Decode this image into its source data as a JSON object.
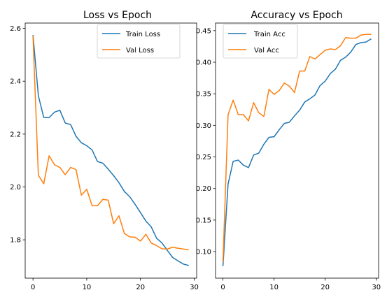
{
  "chart_data": [
    {
      "type": "line",
      "title": "Loss vs Epoch",
      "xlabel": "",
      "ylabel": "",
      "xlim": [
        -1.45,
        30.45
      ],
      "ylim": [
        1.655,
        2.62
      ],
      "xticks": [
        0,
        10,
        20,
        30
      ],
      "yticks": [
        1.8,
        2.0,
        2.2,
        2.4,
        2.6
      ],
      "ytick_labels": [
        "1.8",
        "2.0",
        "2.2",
        "2.4",
        "2.6"
      ],
      "grid": false,
      "legend": "top-right",
      "x": [
        0,
        1,
        2,
        3,
        4,
        5,
        6,
        7,
        8,
        9,
        10,
        11,
        12,
        13,
        14,
        15,
        16,
        17,
        18,
        19,
        20,
        21,
        22,
        23,
        24,
        25,
        26,
        27,
        28,
        29
      ],
      "series": [
        {
          "name": "Train Loss",
          "color": "#1f77b4",
          "values": [
            2.575,
            2.345,
            2.263,
            2.262,
            2.283,
            2.29,
            2.242,
            2.236,
            2.192,
            2.167,
            2.156,
            2.14,
            2.096,
            2.09,
            2.067,
            2.043,
            2.016,
            1.983,
            1.963,
            1.934,
            1.903,
            1.871,
            1.849,
            1.806,
            1.788,
            1.76,
            1.733,
            1.72,
            1.708,
            1.703
          ]
        },
        {
          "name": "Val Loss",
          "color": "#ff7f0e",
          "values": [
            2.571,
            2.044,
            2.012,
            2.118,
            2.084,
            2.074,
            2.046,
            2.074,
            2.066,
            1.969,
            1.991,
            1.929,
            1.929,
            1.953,
            1.95,
            1.861,
            1.891,
            1.824,
            1.811,
            1.81,
            1.795,
            1.821,
            1.788,
            1.778,
            1.766,
            1.765,
            1.772,
            1.768,
            1.765,
            1.762
          ]
        }
      ]
    },
    {
      "type": "line",
      "title": "Accuracy vs Epoch",
      "xlabel": "",
      "ylabel": "",
      "xlim": [
        -1.45,
        30.45
      ],
      "ylim": [
        0.058,
        0.462
      ],
      "xticks": [
        0,
        10,
        20,
        30
      ],
      "yticks": [
        0.1,
        0.15,
        0.2,
        0.25,
        0.3,
        0.35,
        0.4,
        0.45
      ],
      "ytick_labels": [
        "0.10",
        "0.15",
        "0.20",
        "0.25",
        "0.30",
        "0.35",
        "0.40",
        "0.45"
      ],
      "grid": false,
      "legend": "top-left",
      "x": [
        0,
        1,
        2,
        3,
        4,
        5,
        6,
        7,
        8,
        9,
        10,
        11,
        12,
        13,
        14,
        15,
        16,
        17,
        18,
        19,
        20,
        21,
        22,
        23,
        24,
        25,
        26,
        27,
        28,
        29
      ],
      "series": [
        {
          "name": "Train Acc",
          "color": "#1f77b4",
          "values": [
            0.077,
            0.207,
            0.243,
            0.245,
            0.237,
            0.233,
            0.253,
            0.256,
            0.27,
            0.281,
            0.282,
            0.293,
            0.303,
            0.305,
            0.315,
            0.324,
            0.337,
            0.342,
            0.348,
            0.363,
            0.37,
            0.382,
            0.389,
            0.403,
            0.408,
            0.416,
            0.428,
            0.431,
            0.432,
            0.437
          ]
        },
        {
          "name": "Val Acc",
          "color": "#ff7f0e",
          "values": [
            0.083,
            0.317,
            0.34,
            0.317,
            0.317,
            0.307,
            0.336,
            0.32,
            0.314,
            0.357,
            0.349,
            0.355,
            0.367,
            0.362,
            0.352,
            0.386,
            0.386,
            0.409,
            0.405,
            0.412,
            0.419,
            0.421,
            0.42,
            0.426,
            0.439,
            0.438,
            0.438,
            0.443,
            0.444,
            0.444
          ]
        }
      ]
    }
  ]
}
